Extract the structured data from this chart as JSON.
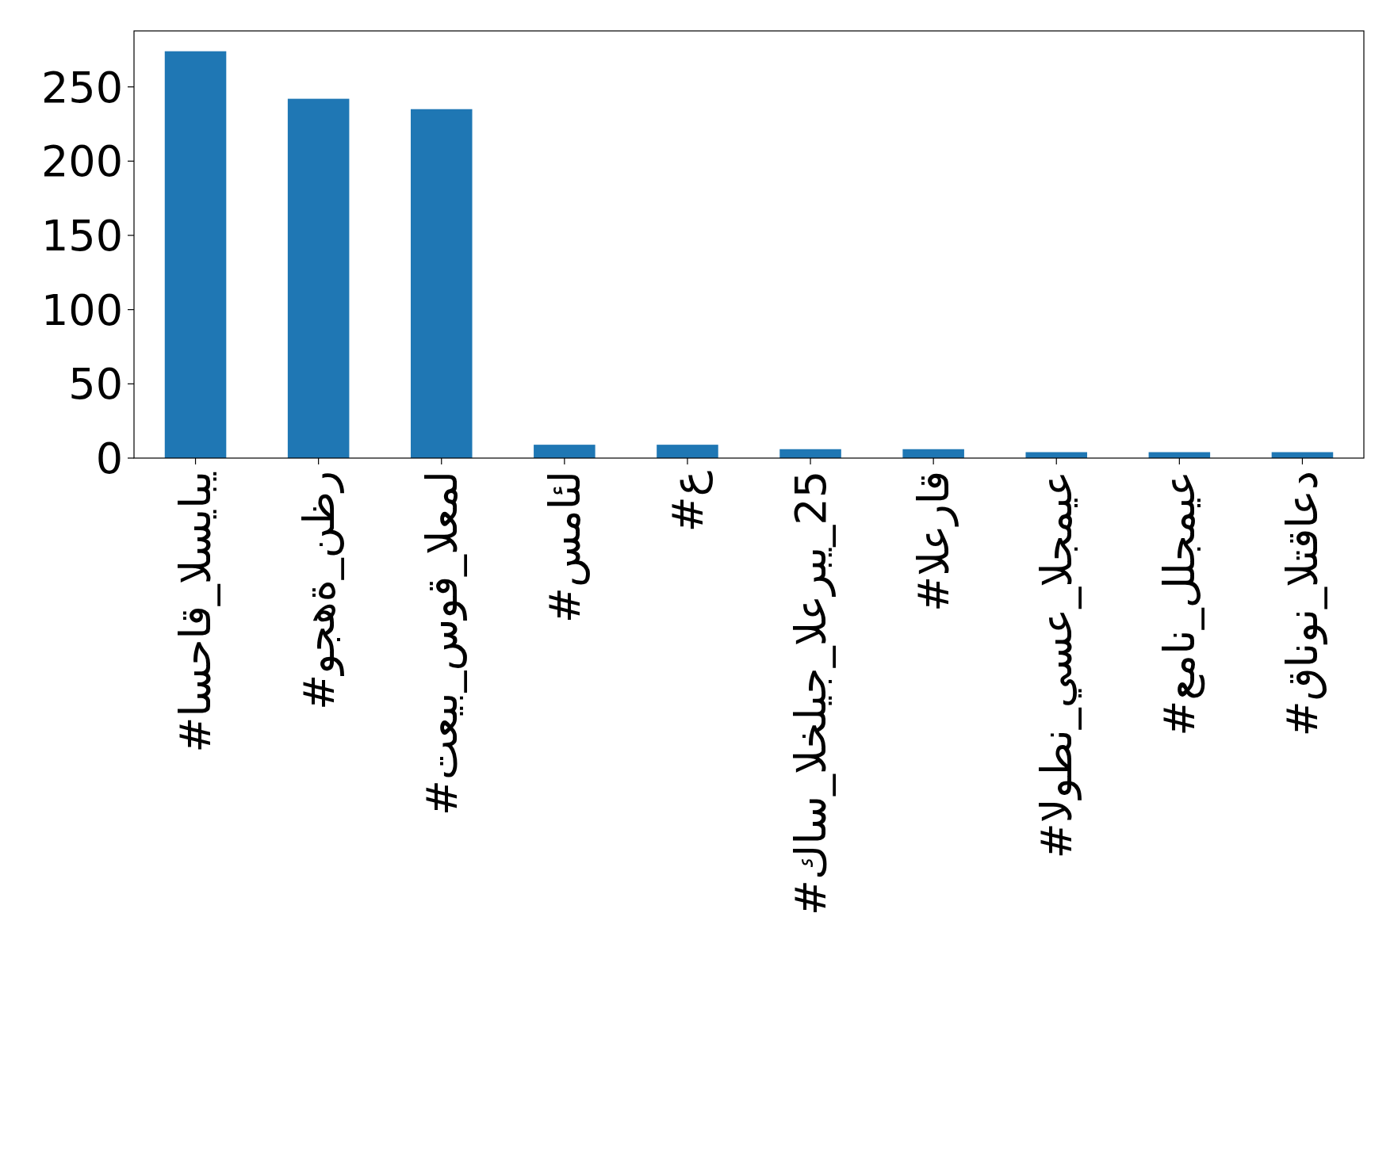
{
  "chart_data": {
    "type": "bar",
    "categories": [
      "#اسحاق_السيابي",
      "#وجهة_نظر",
      "#تعيب_سوق_العمل",
      "#سمائل",
      "#ع",
      "#كاس_الخليج_العربي_25",
      "#العراق",
      "#الوطن_يسع_الجميع",
      "#عمان_للجميع",
      "#قانون_التقاعد"
    ],
    "values": [
      274,
      242,
      235,
      9,
      9,
      6,
      6,
      4,
      4,
      4
    ],
    "color": "#1f77b4",
    "ylim": [
      0,
      287.7
    ],
    "yticks": [
      0,
      50,
      100,
      150,
      200,
      250
    ]
  }
}
